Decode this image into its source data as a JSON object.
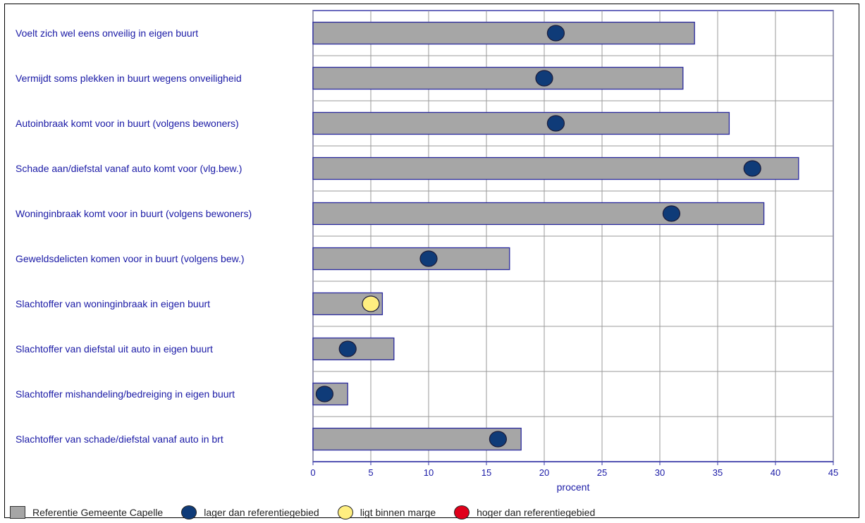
{
  "chart_data": {
    "type": "bar",
    "orientation": "horizontal",
    "categories": [
      "Voelt zich wel eens onveilig in eigen buurt",
      "Vermijdt soms plekken in buurt wegens onveiligheid",
      "Autoinbraak komt voor in buurt (volgens bewoners)",
      "Schade aan/diefstal vanaf auto komt voor (vlg.bew.)",
      "Woninginbraak komt voor in buurt (volgens bewoners)",
      "Geweldsdelicten komen voor in buurt (volgens bew.)",
      "Slachtoffer van woninginbraak in eigen buurt",
      "Slachtoffer van diefstal uit auto in eigen buurt",
      "Slachtoffer mishandeling/bedreiging in eigen buurt",
      "Slachtoffer van schade/diefstal vanaf auto in brt"
    ],
    "series": [
      {
        "name": "Referentie  Gemeente Capelle",
        "kind": "bar",
        "color": "#a6a6a6",
        "values": [
          33,
          32,
          36,
          42,
          39,
          17,
          6,
          7,
          3,
          18
        ]
      },
      {
        "kind": "marker",
        "values": [
          21,
          20,
          21,
          38,
          31,
          10,
          5,
          3,
          1,
          16
        ],
        "status": [
          "lager",
          "lager",
          "lager",
          "lager",
          "lager",
          "lager",
          "binnen",
          "lager",
          "lager",
          "lager"
        ]
      }
    ],
    "status_colors": {
      "lager": "#0f3b78",
      "binnen": "#ffef80",
      "hoger": "#e0001b"
    },
    "xlabel": "procent",
    "xlim": [
      0,
      45
    ],
    "xticks": [
      0,
      5,
      10,
      15,
      20,
      25,
      30,
      35,
      40,
      45
    ],
    "grid": true,
    "legend_position": "bottom"
  },
  "legend": {
    "reference_label": "Referentie  Gemeente Capelle",
    "lower_label": "lager dan referentiegebied",
    "within_label": "ligt binnen marge",
    "higher_label": "hoger dan referentiegebied"
  }
}
